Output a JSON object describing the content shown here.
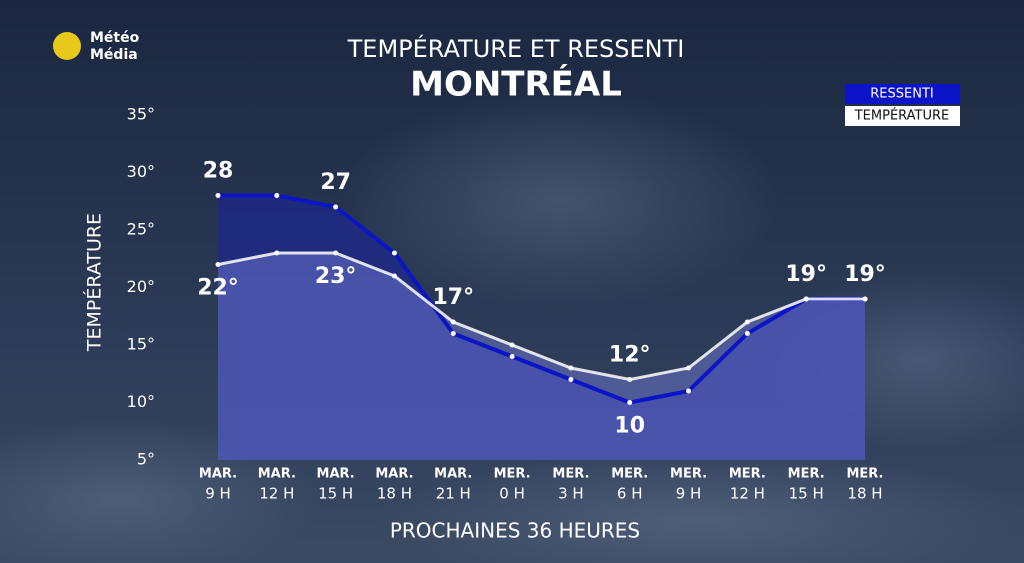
{
  "logo": [
    "Météo",
    "Média"
  ],
  "chart_data": {
    "type": "line",
    "title": "TEMPÉRATURE ET RESSENTI",
    "subtitle": "MONTRÉAL",
    "y_label": "TEMPÉRATURE",
    "x_label": "PROCHAINES 36 HEURES",
    "categories": [
      [
        "MAR.",
        "9 H"
      ],
      [
        "MAR.",
        "12 H"
      ],
      [
        "MAR.",
        "15 H"
      ],
      [
        "MAR.",
        "18 H"
      ],
      [
        "MAR.",
        "21 H"
      ],
      [
        "MER.",
        "0 H"
      ],
      [
        "MER.",
        "3 H"
      ],
      [
        "MER.",
        "6 H"
      ],
      [
        "MER.",
        "9 H"
      ],
      [
        "MER.",
        "12 H"
      ],
      [
        "MER.",
        "15 H"
      ],
      [
        "MER.",
        "18 H"
      ]
    ],
    "series": [
      {
        "name": "RESSENTI",
        "color": "#0c14c8",
        "values": [
          28,
          28,
          27,
          23,
          16,
          14,
          12,
          10,
          11,
          16,
          19,
          19
        ],
        "value_labels": [
          "28",
          null,
          "27",
          null,
          null,
          null,
          null,
          "10",
          null,
          null,
          null,
          null
        ]
      },
      {
        "name": "TEMPÉRATURE",
        "color": "#ffffff",
        "values": [
          22,
          23,
          23,
          21,
          17,
          15,
          13,
          12,
          13,
          17,
          19,
          19
        ],
        "value_labels": [
          "22°",
          null,
          "23°",
          null,
          "17°",
          null,
          null,
          "12°",
          null,
          null,
          "19°",
          "19°"
        ]
      }
    ],
    "ylim": [
      5,
      35
    ],
    "yticks": [
      {
        "value": 5,
        "label": "5°"
      },
      {
        "value": 10,
        "label": "10°"
      },
      {
        "value": 15,
        "label": "15°"
      },
      {
        "value": 20,
        "label": "20°"
      },
      {
        "value": 25,
        "label": "25°"
      },
      {
        "value": 30,
        "label": "30°"
      },
      {
        "value": 35,
        "label": "35°"
      }
    ],
    "legend": "top-right"
  }
}
